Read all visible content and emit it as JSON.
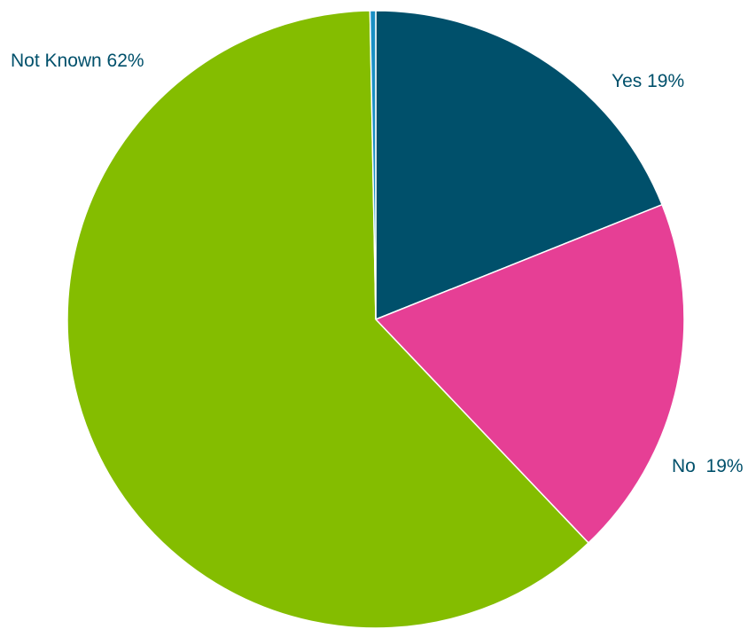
{
  "chart_data": {
    "type": "pie",
    "title": "",
    "start_angle_deg": 0,
    "direction": "clockwise",
    "slices": [
      {
        "label": "Yes",
        "value": 19,
        "display": "Yes 19%",
        "color": "#00506b"
      },
      {
        "label": "No",
        "value": 19,
        "display": "No  19%",
        "color": "#e63f95"
      },
      {
        "label": "Not Known",
        "value": 62,
        "display": "Not Known 62%",
        "color": "#84bd00"
      },
      {
        "label": "",
        "value": 0.3,
        "display": "",
        "color": "#1a8fc4"
      }
    ],
    "label_color": "#00506b"
  }
}
